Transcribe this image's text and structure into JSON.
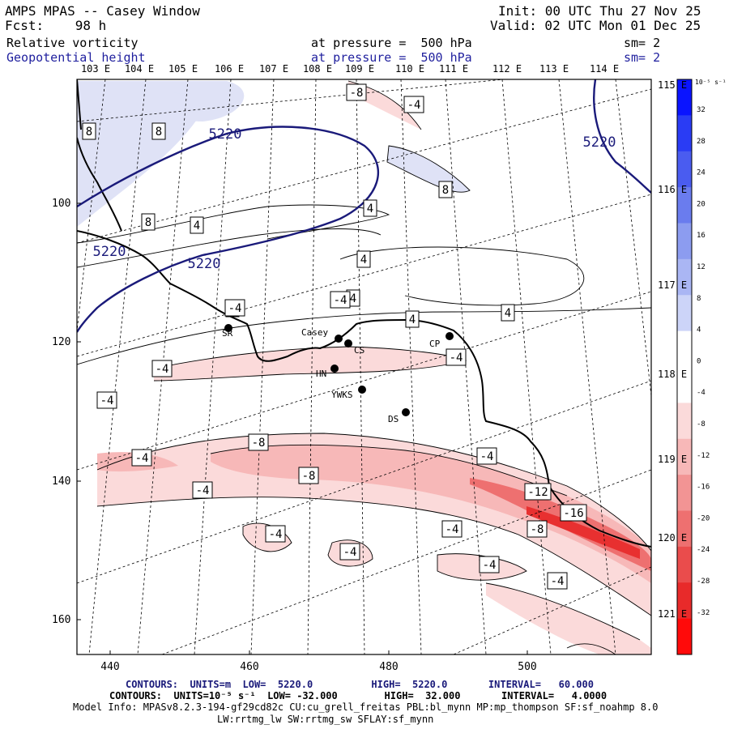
{
  "header": {
    "title": "AMPS MPAS -- Casey Window",
    "fcst": "Fcst:    98 h",
    "init": "Init: 00 UTC Thu 27 Nov 25",
    "valid": "Valid: 02 UTC Mon 01 Dec 25",
    "field1_name": "Relative vorticity",
    "field1_level": "at pressure =  500 hPa",
    "field1_sm": "sm= 2",
    "field2_name": "Geopotential height",
    "field2_level": "at pressure =  500 hPa",
    "field2_sm": "sm= 2"
  },
  "map": {
    "lon_labels_top": [
      "103 E",
      "104 E",
      "105 E",
      "106 E",
      "107 E",
      "108 E",
      "109 E",
      "110 E",
      "111 E",
      "112 E",
      "113 E",
      "114 E"
    ],
    "lon_labels_right": [
      "115 E",
      "116 E",
      "117 E",
      "118 E",
      "119 E",
      "120 E",
      "121 E"
    ],
    "y_ticks": [
      "100",
      "120",
      "140",
      "160"
    ],
    "x_ticks": [
      "440",
      "460",
      "480",
      "500"
    ],
    "stations": [
      {
        "code": "SR"
      },
      {
        "code": "Casey"
      },
      {
        "code": "CS"
      },
      {
        "code": "CP"
      },
      {
        "code": "HN"
      },
      {
        "code": "YWKS"
      },
      {
        "code": "DS"
      }
    ],
    "height_contour_labels": [
      "5220",
      "5220",
      "5220",
      "5220"
    ],
    "vorticity_labels": [
      "8",
      "8",
      "8",
      "8",
      "4",
      "4",
      "4",
      "4",
      "4",
      "4",
      "4",
      "-8",
      "-4",
      "-4",
      "-4",
      "-4",
      "-4",
      "-8",
      "-8",
      "-4",
      "-4",
      "-4",
      "-4",
      "-4",
      "-4",
      "-4",
      "-12",
      "-16",
      "-8",
      "-4",
      "-4"
    ]
  },
  "colorbar": {
    "unit": "10⁻⁵ s⁻¹",
    "labels": [
      "32",
      "28",
      "24",
      "20",
      "16",
      "12",
      "8",
      "4",
      "0",
      "-4",
      "-8",
      "-12",
      "-16",
      "-20",
      "-24",
      "-28",
      "-32"
    ],
    "colors": [
      "#0a14ff",
      "#2a3cf5",
      "#4a5cf0",
      "#6a7cee",
      "#8c9cf0",
      "#aab6f4",
      "#ccd4f8",
      "#ffffff",
      "#ffffff",
      "#fbdada",
      "#f7b8b8",
      "#f29494",
      "#ee7070",
      "#ea4c4c",
      "#e82a2a",
      "#ff0a0a"
    ]
  },
  "footer": {
    "line1": "CONTOURS:  UNITS=m  LOW=  5220.0          HIGH=  5220.0       INTERVAL=   60.000",
    "line2": "CONTOURS:  UNITS=10⁻⁵ s⁻¹  LOW= -32.000        HIGH=  32.000       INTERVAL=   4.0000",
    "line3": "Model Info: MPASv8.2.3-194-gf29cd82c CU:cu_grell_freitas PBL:bl_mynn MP:mp_thompson SF:sf_noahmp 8.0",
    "line4": "LW:rrtmg_lw SW:rrtmg_sw SFLAY:sf_mynn"
  }
}
